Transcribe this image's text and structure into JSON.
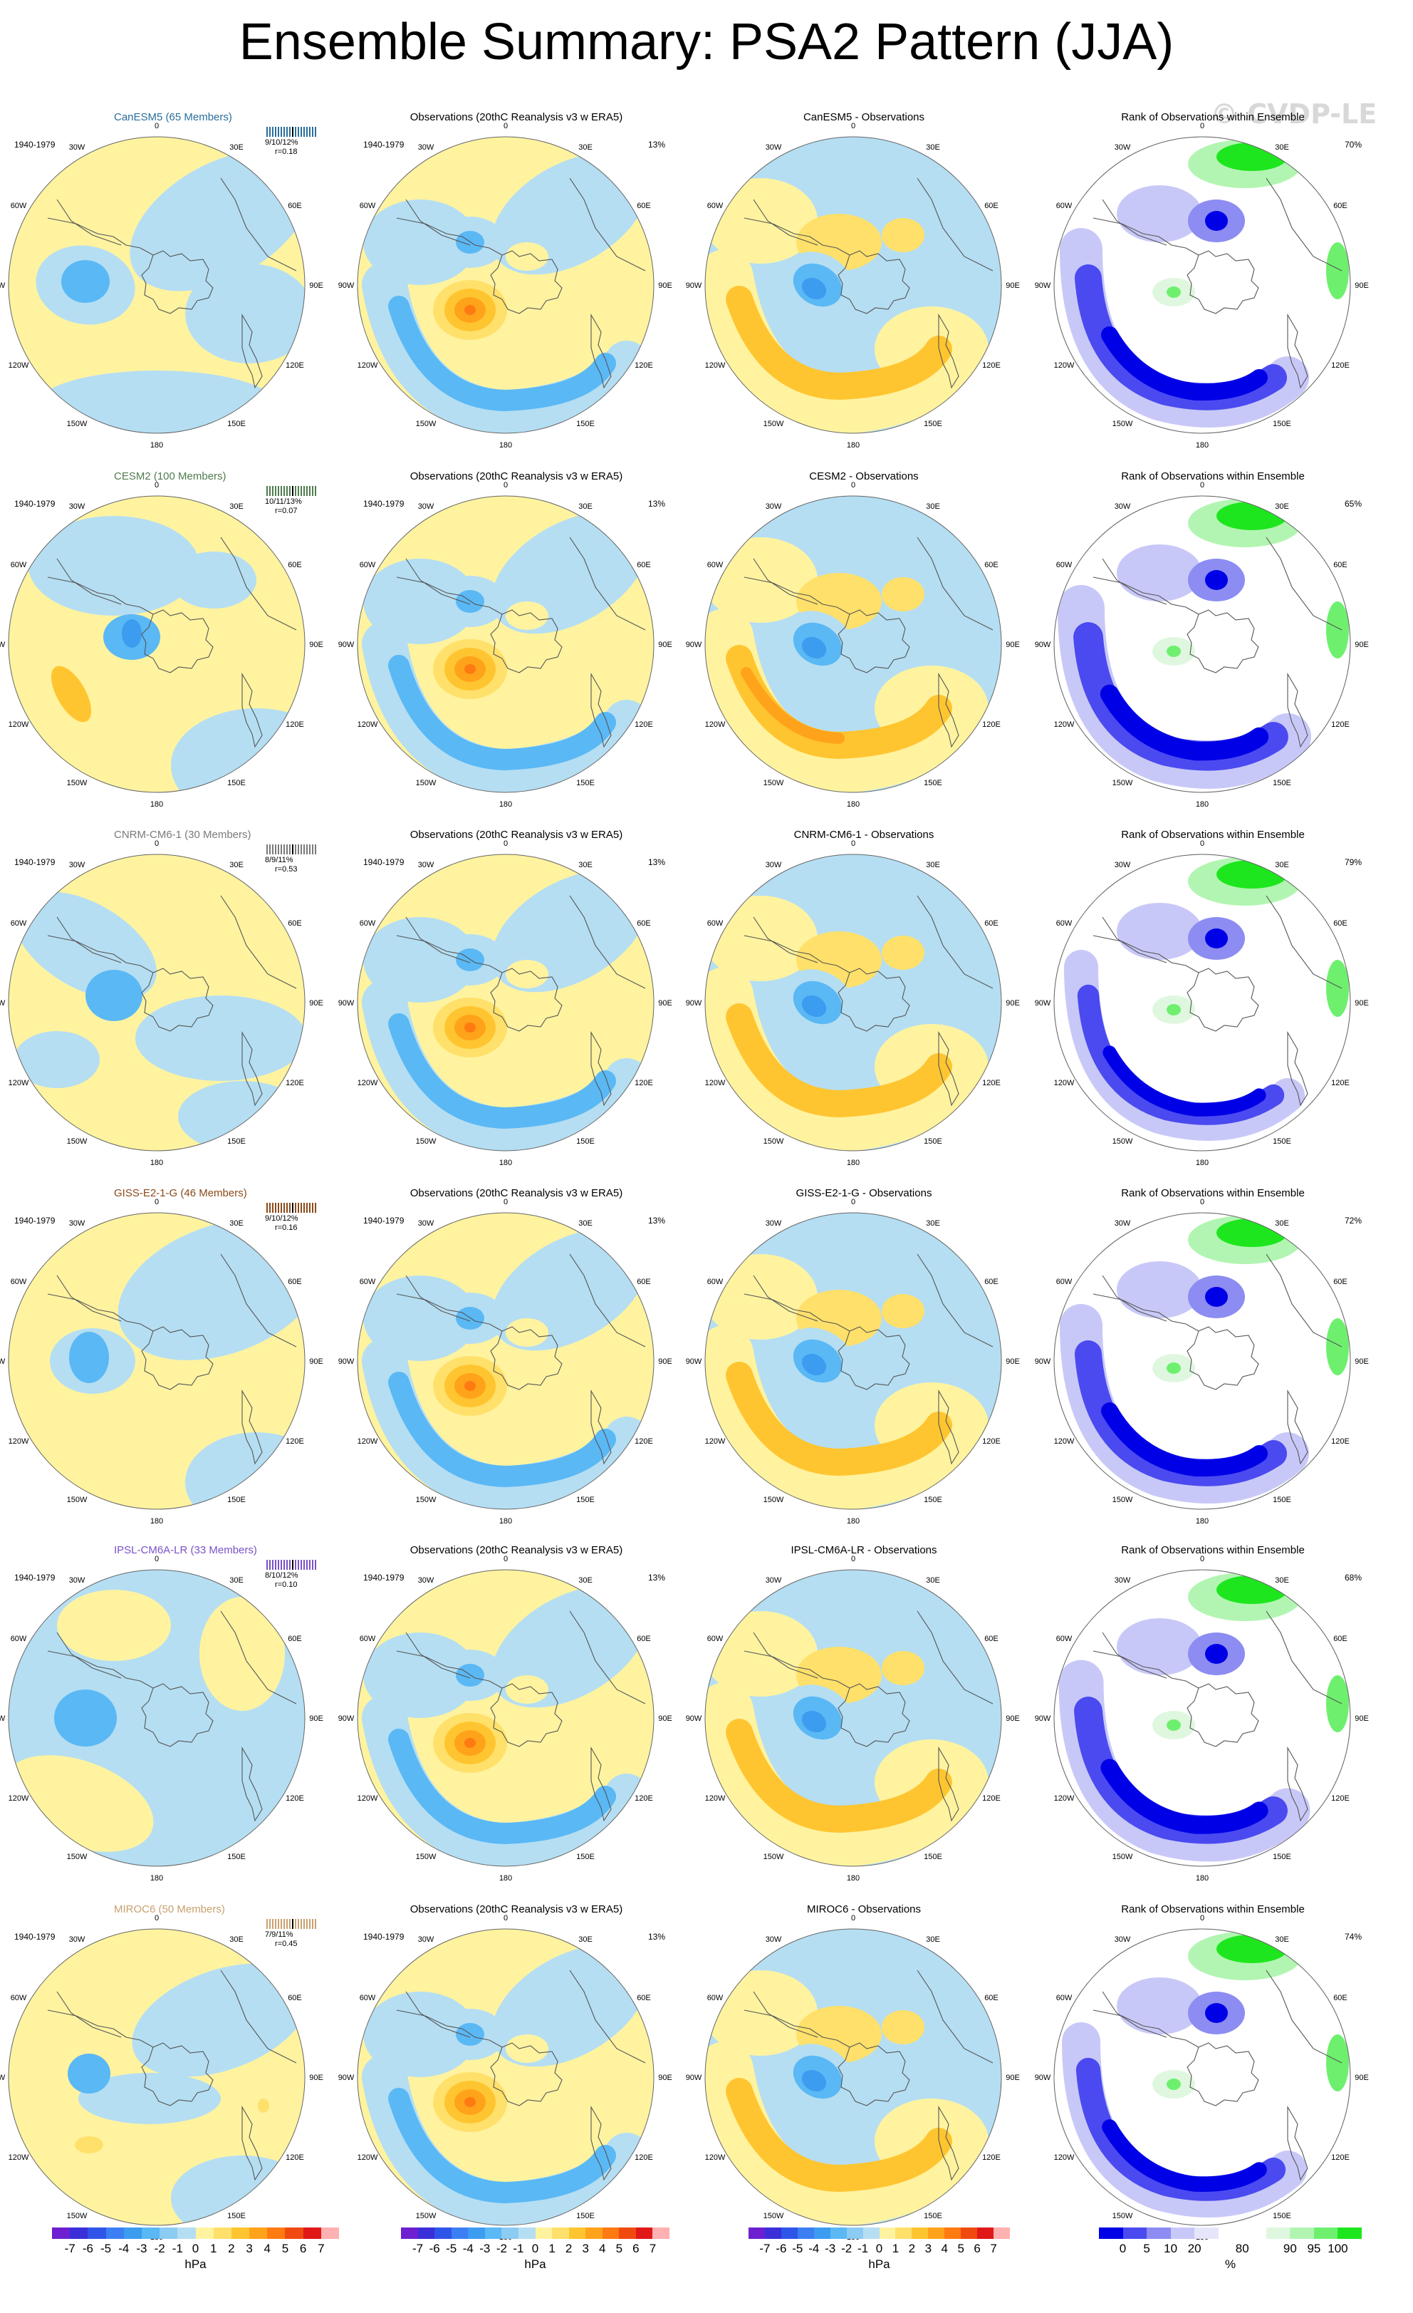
{
  "title": "Ensemble Summary: PSA2 Pattern (JJA)",
  "watermark": "© CVDP-LE",
  "lon_labels": [
    "0",
    "30E",
    "60E",
    "90E",
    "120E",
    "150E",
    "180",
    "150W",
    "120W",
    "90W",
    "60W",
    "30W"
  ],
  "obs_title": "Observations (20thC Reanalysis v3 w ERA5)",
  "obs_period": "1940-1979",
  "obs_pct": "13%",
  "model_period": "1940-1979",
  "rank_title": "Rank of Observations within Ensemble",
  "rows": [
    {
      "model_title": "CanESM5 (65 Members)",
      "model_color": "#2a6f9c",
      "stats1": "9/10/12%",
      "stats2": "r=0.18",
      "diff_title": "CanESM5 - Observations",
      "rank_pct": "70%",
      "variant": 0
    },
    {
      "model_title": "CESM2 (100 Members)",
      "model_color": "#4f7c4f",
      "stats1": "10/11/13%",
      "stats2": "r=0.07",
      "diff_title": "CESM2 - Observations",
      "rank_pct": "65%",
      "variant": 1
    },
    {
      "model_title": "CNRM-CM6-1 (30 Members)",
      "model_color": "#7a7a7a",
      "stats1": "8/9/11%",
      "stats2": "r=0.53",
      "diff_title": "CNRM-CM6-1 - Observations",
      "rank_pct": "79%",
      "variant": 2
    },
    {
      "model_title": "GISS-E2-1-G (46 Members)",
      "model_color": "#8a4a1a",
      "stats1": "9/10/12%",
      "stats2": "r=0.16",
      "diff_title": "GISS-E2-1-G - Observations",
      "rank_pct": "72%",
      "variant": 3
    },
    {
      "model_title": "IPSL-CM6A-LR (33 Members)",
      "model_color": "#7a52c7",
      "stats1": "8/10/12%",
      "stats2": "r=0.10",
      "diff_title": "IPSL-CM6A-LR - Observations",
      "rank_pct": "68%",
      "variant": 4
    },
    {
      "model_title": "MIROC6 (50 Members)",
      "model_color": "#c9a070",
      "stats1": "7/9/11%",
      "stats2": "r=0.45",
      "diff_title": "MIROC6 - Observations",
      "rank_pct": "74%",
      "variant": 5
    }
  ],
  "legends": {
    "hpa_ticks": [
      "-7",
      "-6",
      "-5",
      "-4",
      "-3",
      "-2",
      "-1",
      "0",
      "1",
      "2",
      "3",
      "4",
      "5",
      "6",
      "7"
    ],
    "hpa_unit": "hPa",
    "hpa_colors": [
      "#6e1fd0",
      "#3a2fd8",
      "#2f55e8",
      "#3c7ff2",
      "#3c9cf0",
      "#5ab8f5",
      "#8ccbf2",
      "#b5def2",
      "#fff3a0",
      "#ffe06a",
      "#ffc530",
      "#ffa31a",
      "#ff7a10",
      "#f04a10",
      "#e01818",
      "#ffb0b0"
    ],
    "rank_ticks": [
      "0",
      "5",
      "10",
      "20",
      "80",
      "90",
      "95",
      "100"
    ],
    "rank_unit": "%",
    "rank_colors": [
      "#0000e6",
      "#4a4af0",
      "#8c8cf2",
      "#c8c8f8",
      "#e6e6fa",
      "#ffffff",
      "#ffffff",
      "#dff7df",
      "#b2f5b2",
      "#6ef06e",
      "#1ee61e"
    ]
  }
}
